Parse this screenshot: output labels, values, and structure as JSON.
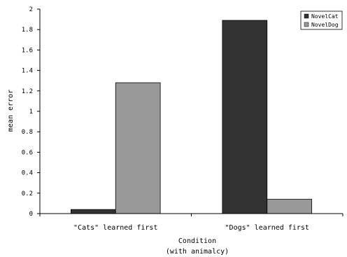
{
  "chart_data": {
    "type": "bar",
    "title": "",
    "xlabel": "Condition",
    "xlabel_sub": "(with animalcy)",
    "ylabel": "mean error",
    "ylim": [
      0,
      2
    ],
    "yticks": [
      "0",
      "0.2",
      "0.4",
      "0.6",
      "0.8",
      "1",
      "1.2",
      "1.4",
      "1.6",
      "1.8",
      "2"
    ],
    "categories": [
      "\"Cats\" learned first",
      "\"Dogs\" learned first"
    ],
    "series": [
      {
        "name": "NovelCat",
        "values": [
          0.04,
          1.89
        ],
        "color": "#333333"
      },
      {
        "name": "NovelDog",
        "values": [
          1.28,
          0.14
        ],
        "color": "#999999"
      }
    ],
    "legend_position": "top-right",
    "grid": false
  }
}
